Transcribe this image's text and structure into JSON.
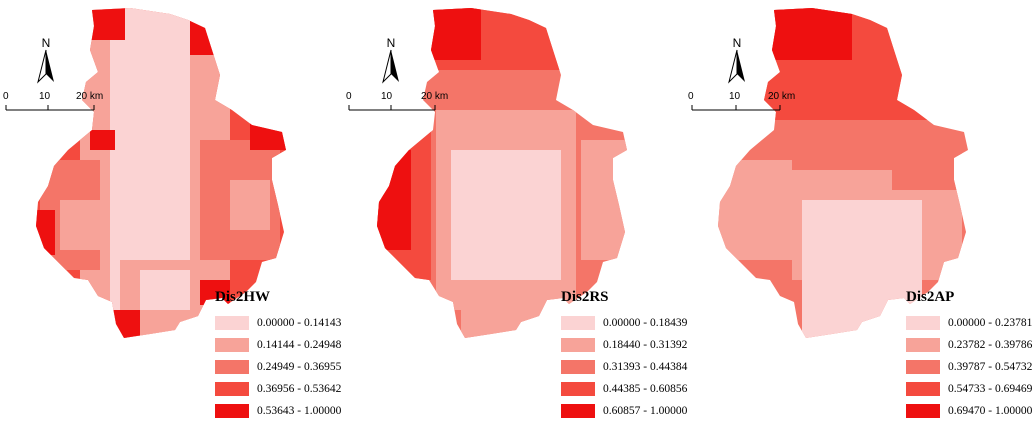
{
  "north_letter": "N",
  "scale": {
    "labels": [
      "0",
      "10",
      "20 km"
    ]
  },
  "colors": [
    "#fbd3d3",
    "#f7a399",
    "#f47568",
    "#f44a3e",
    "#ee1010"
  ],
  "panels": [
    {
      "title": "Dis2HW",
      "classes": [
        "0.00000 - 0.14143",
        "0.14144 - 0.24948",
        "0.24949 - 0.36955",
        "0.36956 - 0.53642",
        "0.53643 - 1.00000"
      ]
    },
    {
      "title": "Dis2RS",
      "classes": [
        "0.00000 - 0.18439",
        "0.18440 - 0.31392",
        "0.31393 - 0.44384",
        "0.44385 - 0.60856",
        "0.60857 - 1.00000"
      ]
    },
    {
      "title": "Dis2AP",
      "classes": [
        "0.00000 - 0.23781",
        "0.23782 - 0.39786",
        "0.39787 - 0.54732",
        "0.54733 - 0.69469",
        "0.69470 - 1.00000"
      ]
    }
  ]
}
